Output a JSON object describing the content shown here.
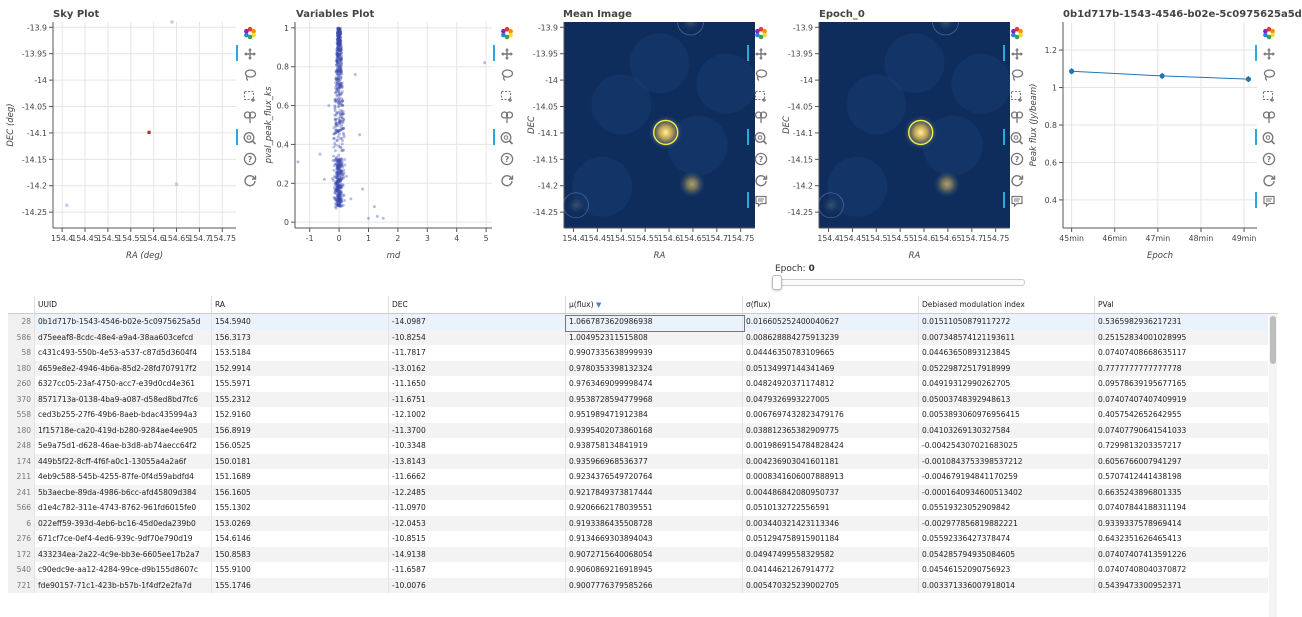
{
  "plots": {
    "sky": {
      "title": "Sky Plot",
      "xlabel": "RA (deg)",
      "ylabel": "DEC (deg)",
      "xticks": [
        "154.4",
        "154.45",
        "154.5",
        "154.55",
        "154.6",
        "154.65",
        "154.7",
        "154.75"
      ],
      "yticks": [
        "-13.9",
        "-13.95",
        "-14",
        "-14.05",
        "-14.1",
        "-14.15",
        "-14.2",
        "-14.25"
      ]
    },
    "variables": {
      "title": "Variables Plot",
      "xlabel": "md",
      "ylabel": "pval_peak_flux_ks",
      "xticks": [
        "-1",
        "0",
        "1",
        "2",
        "3",
        "4",
        "5"
      ],
      "yticks": [
        "1",
        "0.8",
        "0.6",
        "0.4",
        "0.2",
        "0"
      ]
    },
    "mean_image": {
      "title": "Mean Image",
      "xlabel": "RA",
      "ylabel": "DEC",
      "xticks": [
        "154.4",
        "154.45",
        "154.5",
        "154.55",
        "154.6",
        "154.65",
        "154.7",
        "154.75"
      ],
      "yticks": [
        "-13.9",
        "-13.95",
        "-14",
        "-14.05",
        "-14.1",
        "-14.15",
        "-14.2",
        "-14.25"
      ]
    },
    "epoch_image": {
      "title": "Epoch_0",
      "xlabel": "RA",
      "ylabel": "DEC",
      "xticks": [
        "154.4",
        "154.45",
        "154.5",
        "154.55",
        "154.6",
        "154.65",
        "154.7",
        "154.75"
      ],
      "yticks": [
        "-13.9",
        "-13.95",
        "-14",
        "-14.05",
        "-14.1",
        "-14.15",
        "-14.2",
        "-14.25"
      ]
    },
    "lightcurve": {
      "title": "0b1d717b-1543-4546-b02e-5c0975625a5d",
      "xlabel": "Epoch",
      "ylabel": "Peak flux (Jy/beam)",
      "xticks": [
        "45min",
        "46min",
        "47min",
        "48min",
        "49min"
      ],
      "yticks": [
        "1.2",
        "1",
        "0.8",
        "0.6",
        "0.4"
      ]
    }
  },
  "chart_data": [
    {
      "type": "scatter",
      "title": "Sky Plot",
      "xlabel": "RA (deg)",
      "ylabel": "DEC (deg)",
      "xlim": [
        154.38,
        154.78
      ],
      "ylim": [
        -14.28,
        -13.89
      ],
      "points": [
        {
          "x": 154.59,
          "y": -14.099,
          "selected": true
        },
        {
          "x": 154.64,
          "y": -13.89
        },
        {
          "x": 154.65,
          "y": -14.197
        },
        {
          "x": 154.41,
          "y": -14.237
        }
      ]
    },
    {
      "type": "scatter",
      "title": "Variables Plot",
      "xlabel": "md",
      "ylabel": "pval_peak_flux_ks",
      "xlim": [
        -1.5,
        5.2
      ],
      "ylim": [
        -0.03,
        1.03
      ],
      "outliers": [
        {
          "x": -1.4,
          "y": 0.31
        },
        {
          "x": -0.35,
          "y": 0.6
        },
        {
          "x": -0.65,
          "y": 0.35
        },
        {
          "x": 0.55,
          "y": 0.76
        },
        {
          "x": 0.8,
          "y": 0.17
        },
        {
          "x": 1.0,
          "y": 0.02
        },
        {
          "x": 1.2,
          "y": 0.08
        },
        {
          "x": 1.5,
          "y": 0.02
        },
        {
          "x": 1.3,
          "y": 0.03
        },
        {
          "x": 0.7,
          "y": 0.45
        },
        {
          "x": 4.95,
          "y": 0.82
        },
        {
          "x": -0.5,
          "y": 0.22
        },
        {
          "x": 0.4,
          "y": 0.12
        }
      ]
    },
    {
      "type": "image",
      "title": "Mean Image",
      "xlabel": "RA",
      "ylabel": "DEC",
      "xlim": [
        154.38,
        154.78
      ],
      "ylim": [
        -14.28,
        -13.89
      ],
      "sources": [
        {
          "ra": 154.593,
          "dec": -14.099,
          "peak": 1.0,
          "circled": true
        },
        {
          "ra": 154.648,
          "dec": -14.197,
          "peak": 0.6
        },
        {
          "ra": 154.645,
          "dec": -13.89,
          "peak": 0.2
        },
        {
          "ra": 154.405,
          "dec": -14.237,
          "peak": 0.15
        }
      ]
    },
    {
      "type": "image",
      "title": "Epoch_0",
      "xlabel": "RA",
      "ylabel": "DEC",
      "xlim": [
        154.38,
        154.78
      ],
      "ylim": [
        -14.28,
        -13.89
      ],
      "sources": [
        {
          "ra": 154.593,
          "dec": -14.099,
          "peak": 1.0,
          "circled": true
        },
        {
          "ra": 154.648,
          "dec": -14.197,
          "peak": 0.6
        },
        {
          "ra": 154.645,
          "dec": -13.89,
          "peak": 0.2
        },
        {
          "ra": 154.405,
          "dec": -14.237,
          "peak": 0.15
        }
      ]
    },
    {
      "type": "line",
      "title": "0b1d717b-1543-4546-b02e-5c0975625a5d",
      "xlabel": "Epoch",
      "ylabel": "Peak flux (Jy/beam)",
      "xlim": [
        44.8,
        49.3
      ],
      "ylim": [
        0.25,
        1.35
      ],
      "x": [
        45.0,
        47.1,
        49.1
      ],
      "y": [
        1.087,
        1.062,
        1.045
      ]
    }
  ],
  "epoch_widget": {
    "label": "Epoch:",
    "value": "0",
    "fraction": 0
  },
  "table": {
    "columns": [
      "UUID",
      "RA",
      "DEC",
      "μ(flux)",
      "σ(flux)",
      "Debiased modulation index",
      "PVal"
    ],
    "sort_icon": "sort-down-icon",
    "rows": [
      {
        "idx": "28",
        "uuid": "0b1d717b-1543-4546-b02e-5c0975625a5d",
        "ra": "154.5940",
        "dec": "-14.0987",
        "mu": "1.0667873620986938",
        "sigma": "0.016605252400040627",
        "dmi": "0.01511050879117272",
        "pval": "0.5365982936217231"
      },
      {
        "idx": "586",
        "uuid": "d75eeaf8-8cdc-48e4-a9a4-38aa603cefcd",
        "ra": "156.3173",
        "dec": "-10.8254",
        "mu": "1.004952311515808",
        "sigma": "0.008628884275913239",
        "dmi": "0.007348574121193611",
        "pval": "0.25152834001028995"
      },
      {
        "idx": "58",
        "uuid": "c431c493-550b-4e53-a537-c87d5d3604f4",
        "ra": "153.5184",
        "dec": "-11.7817",
        "mu": "0.9907335638999939",
        "sigma": "0.04446350783109665",
        "dmi": "0.04463650893123845",
        "pval": "0.07407408668635117"
      },
      {
        "idx": "180",
        "uuid": "4659e8e2-4946-4b6a-85d2-28fd707917f2",
        "ra": "152.9914",
        "dec": "-13.0162",
        "mu": "0.9780353398132324",
        "sigma": "0.0513499714434146​9",
        "dmi": "0.05229872517918999",
        "pval": "0.7777777777777778"
      },
      {
        "idx": "260",
        "uuid": "6327cc05-23af-4750-acc7-e39d0cd4e361",
        "ra": "155.5971",
        "dec": "-11.1650",
        "mu": "0.9763469099998474",
        "sigma": "0.04824920371174812",
        "dmi": "0.04919312990262705",
        "pval": "0.09578639195677165"
      },
      {
        "idx": "370",
        "uuid": "8571713a-0138-4ba9-a087-d58ed8bd7fc6",
        "ra": "155.2312",
        "dec": "-11.6751",
        "mu": "0.9538728594779968",
        "sigma": "0.0479326993227005",
        "dmi": "0.05003748392948613",
        "pval": "0.07407407407409919"
      },
      {
        "idx": "558",
        "uuid": "ced3b255-27f6-49b6-8aeb-bdac435994a3",
        "ra": "152.9160",
        "dec": "-12.1002",
        "mu": "0.951989471912384",
        "sigma": "0.006769743282347917​6",
        "dmi": "0.005389306097695641​5",
        "pval": "0.4057542652642955"
      },
      {
        "idx": "180",
        "uuid": "1f15718e-ca20-419d-b280-9284ae4ee905",
        "ra": "156.8919",
        "dec": "-11.3700",
        "mu": "0.9395402073860168",
        "sigma": "0.038812365382909775",
        "dmi": "0.04103269130327584",
        "pval": "0.07407790641541033"
      },
      {
        "idx": "248",
        "uuid": "5e9a75d1-d628-46ae-b3d8-ab74aecc64f2",
        "ra": "156.0525",
        "dec": "-10.3348",
        "mu": "0.938758134841919",
        "sigma": "0.001986915478482842​4",
        "dmi": "-0.00425430702168302​5",
        "pval": "0.7299813203357217"
      },
      {
        "idx": "174",
        "uuid": "449b5f22-8cff-4f6f-a0c1-13055a4a2a6f",
        "ra": "150.0181",
        "dec": "-13.8143",
        "mu": "0.935966968536377",
        "sigma": "0.004236903041601181",
        "dmi": "-0.0010843753398537212",
        "pval": "0.6056766007941297"
      },
      {
        "idx": "211",
        "uuid": "4eb9c588-545b-4255-87fe-0f4d59abdfd4",
        "ra": "151.1689",
        "dec": "-11.6662",
        "mu": "0.9234376549720764",
        "sigma": "0.0008341606007888913",
        "dmi": "-0.004679194841170259",
        "pval": "0.5707412441438198"
      },
      {
        "idx": "241",
        "uuid": "5b3aecbe-89da-4986-b6cc-afd45809d384",
        "ra": "156.1605",
        "dec": "-12.2485",
        "mu": "0.9217849373817444",
        "sigma": "0.004486842080950737",
        "dmi": "-0.000164093460051340​2",
        "pval": "0.6635243896801335"
      },
      {
        "idx": "566",
        "uuid": "d1e4c782-311e-4743-8762-961fd6015fe0",
        "ra": "155.1302",
        "dec": "-11.0970",
        "mu": "0.9206662178039551",
        "sigma": "0.0510132722556591",
        "dmi": "0.05519323052909842",
        "pval": "0.07407844188311194"
      },
      {
        "idx": "6",
        "uuid": "022eff59-393d-4eb6-bc16-45d0eda239b0",
        "ra": "153.0269",
        "dec": "-12.0453",
        "mu": "0.9193386435508728",
        "sigma": "0.003440321423113346",
        "dmi": "-0.002977856819882221",
        "pval": "0.9339337578969414"
      },
      {
        "idx": "276",
        "uuid": "671cf7ce-0ef4-4ed6-939c-9df70e790d19",
        "ra": "154.6146",
        "dec": "-10.8515",
        "mu": "0.9134669303894043",
        "sigma": "0.05129475891590118​4",
        "dmi": "0.05592336427378474",
        "pval": "0.6432351626465413"
      },
      {
        "idx": "172",
        "uuid": "433234ea-2a22-4c9e-bb3e-6605ee17b2a7",
        "ra": "150.8583",
        "dec": "-14.9138",
        "mu": "0.9072715640068054",
        "sigma": "0.04947499558329582",
        "dmi": "0.05428579493508460​5",
        "pval": "0.07407407413591226"
      },
      {
        "idx": "540",
        "uuid": "c90edc9e-aa12-4284-99ce-d9b155d8607c",
        "ra": "155.9100",
        "dec": "-11.6587",
        "mu": "0.9060869216918945",
        "sigma": "0.04144621267914772",
        "dmi": "0.04546152090756923",
        "pval": "0.07407408040370872"
      },
      {
        "idx": "721",
        "uuid": "fde90157-71c1-423b-b57b-1f4df2e2fa7d",
        "ra": "155.1746",
        "dec": "-10.0076",
        "mu": "0.9007776379585266",
        "sigma": "0.005470325239002705",
        "dmi": "0.003371336007918014",
        "pval": "0.5439473300952371"
      }
    ]
  },
  "icons": [
    "bokeh-logo-icon",
    "pan-icon",
    "lasso-icon",
    "box-select-icon",
    "tap-icon",
    "wheel-zoom-icon",
    "help-icon",
    "reset-icon",
    "hover-icon"
  ]
}
